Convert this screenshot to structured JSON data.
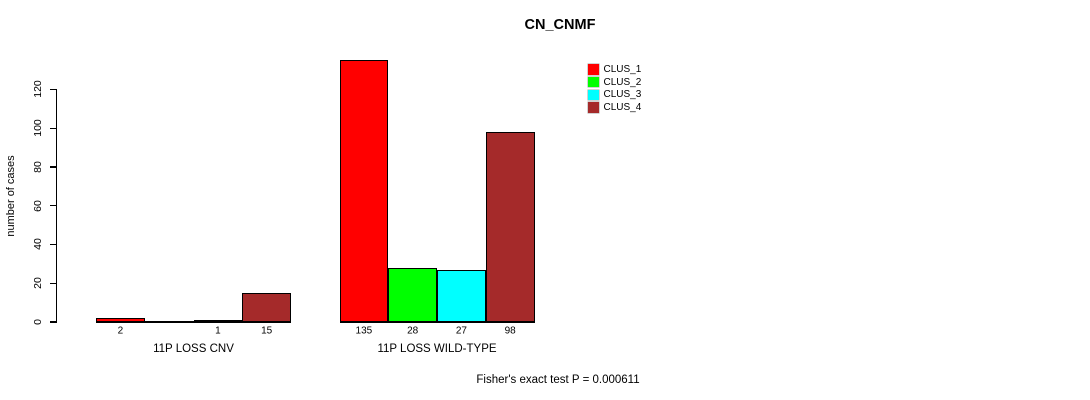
{
  "chart_data": {
    "type": "bar",
    "title": "CN_CNMF",
    "ylabel": "number of cases",
    "xlabel": "",
    "ylim": [
      0,
      140
    ],
    "yticks": [
      0,
      20,
      40,
      60,
      80,
      100,
      120
    ],
    "grid": false,
    "legend_position": "top-right",
    "categories": [
      "11P LOSS CNV",
      "11P LOSS WILD-TYPE"
    ],
    "series": [
      {
        "name": "CLUS_1",
        "color": "#FF0000",
        "values": [
          2,
          135
        ]
      },
      {
        "name": "CLUS_2",
        "color": "#00FF00",
        "values": [
          0,
          28
        ]
      },
      {
        "name": "CLUS_3",
        "color": "#00FFFF",
        "values": [
          1,
          27
        ]
      },
      {
        "name": "CLUS_4",
        "color": "#A52A2A",
        "values": [
          15,
          98
        ]
      }
    ],
    "bar_value_labels": [
      [
        "2",
        "",
        "1",
        "15"
      ],
      [
        "135",
        "28",
        "27",
        "98"
      ]
    ],
    "annotation": "Fisher's exact test P = 0.000611"
  }
}
